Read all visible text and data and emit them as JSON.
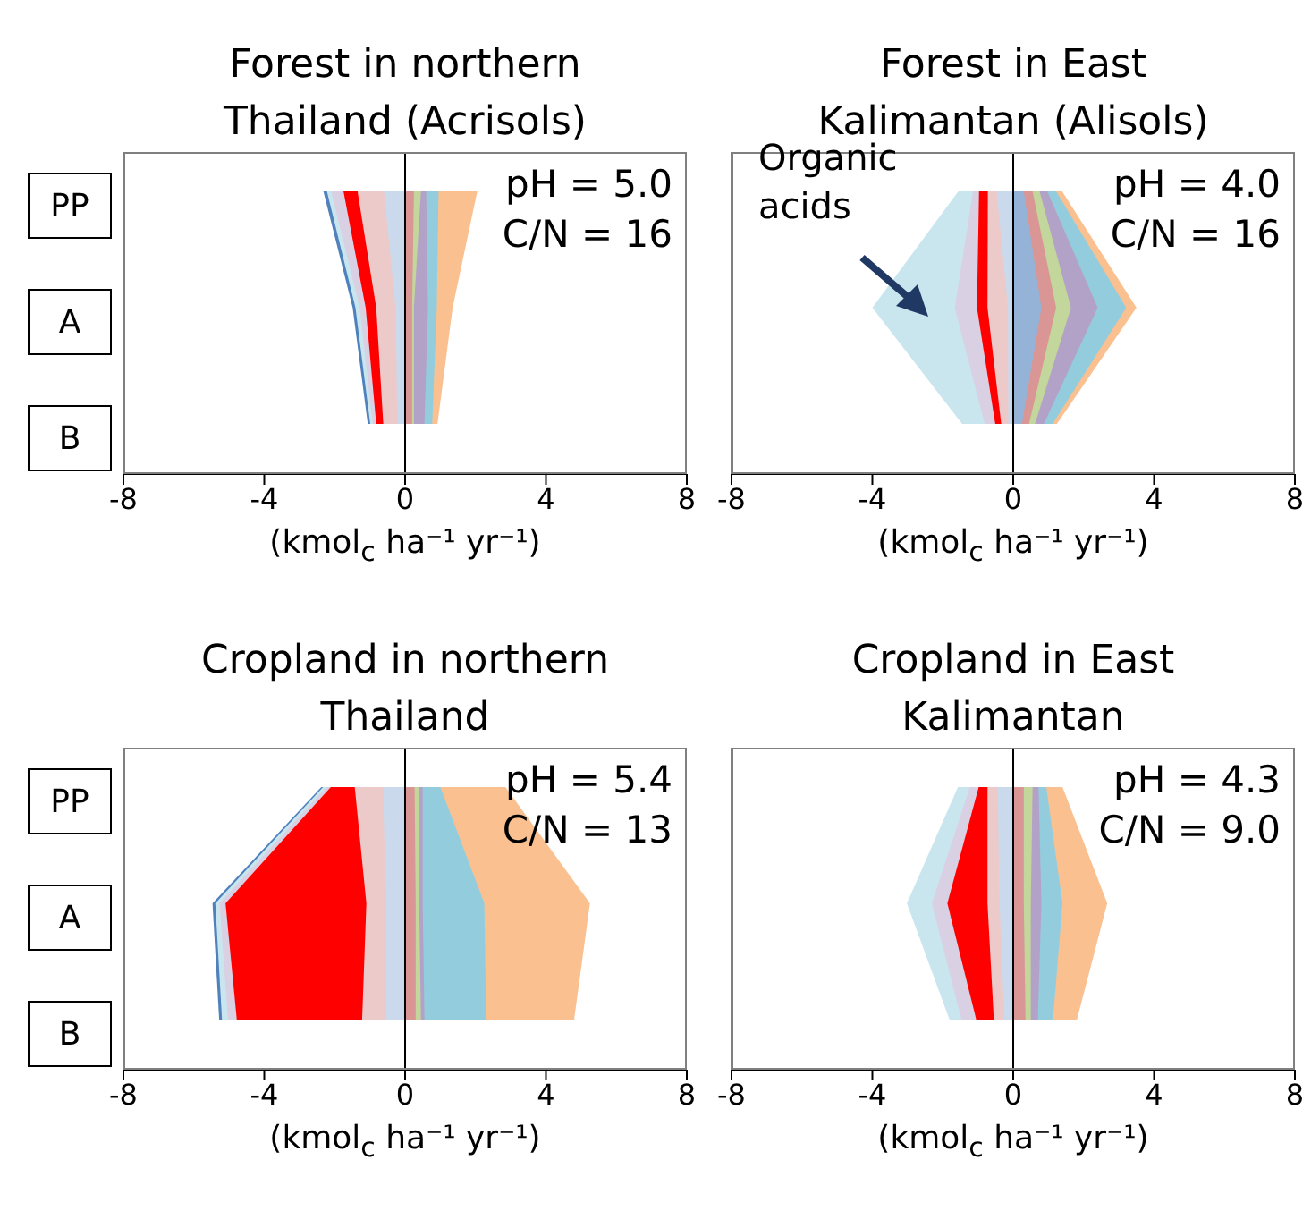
{
  "chart_data": [
    {
      "type": "area",
      "orientation": "horizontal",
      "title": "Forest in northern Thailand (Acrisols)",
      "xlabel": "(kmol$_{c}$ ha⁻¹ yr⁻¹)",
      "categories": [
        "PP",
        "A",
        "B"
      ],
      "xlim": [
        -8,
        8
      ],
      "xticks": [
        -8,
        -4,
        0,
        4,
        8
      ],
      "ref_lines": [
        {
          "axis": "x",
          "value": 0,
          "color": "#000000"
        }
      ],
      "annotations": [
        "pH = 5.0",
        "C/N = 16"
      ],
      "series": [
        {
          "color": "#4f81bd",
          "values": [
            -2.32,
            -1.49,
            -1.06
          ]
        },
        {
          "color": "#c9e6ee",
          "values": [
            -2.22,
            -1.41,
            -0.99
          ]
        },
        {
          "color": "#d9d0e3",
          "values": [
            -2.1,
            -1.29,
            -0.92
          ]
        },
        {
          "color": "#ff0000",
          "values": [
            -1.75,
            -1.12,
            -0.82
          ]
        },
        {
          "color": "#eccac9",
          "values": [
            -1.35,
            -0.82,
            -0.62
          ]
        },
        {
          "color": "#cad9eb",
          "values": [
            -0.6,
            -0.27,
            -0.22
          ]
        },
        {
          "color": "#fac090",
          "values": [
            2.05,
            1.35,
            0.92
          ]
        },
        {
          "color": "#93cddd",
          "values": [
            0.95,
            0.9,
            0.77
          ]
        },
        {
          "color": "#b3a2c7",
          "values": [
            0.6,
            0.65,
            0.55
          ]
        },
        {
          "color": "#c3d69b",
          "values": [
            0.45,
            0.25,
            0.25
          ]
        },
        {
          "color": "#d99694",
          "values": [
            0.25,
            0.2,
            0.2
          ]
        }
      ]
    },
    {
      "type": "area",
      "orientation": "horizontal",
      "title": "Forest in East Kalimantan (Alisols)",
      "xlabel": "(kmol$_{c}$ ha⁻¹ yr⁻¹)",
      "categories": [
        null,
        null,
        null
      ],
      "xlim": [
        -8,
        8
      ],
      "xticks": [
        -8,
        -4,
        0,
        4,
        8
      ],
      "ref_lines": [
        {
          "axis": "x",
          "value": 0,
          "color": "#000000"
        }
      ],
      "annotations": [
        "pH = 4.0",
        "C/N = 16",
        "Organic acids"
      ],
      "series": [
        {
          "color": "#c9e6ee",
          "values": [
            -1.56,
            -4.0,
            -1.45
          ]
        },
        {
          "color": "#d9d0e3",
          "values": [
            -1.14,
            -1.66,
            -0.81
          ]
        },
        {
          "color": "#ff0000",
          "values": [
            -0.97,
            -1.03,
            -0.51
          ]
        },
        {
          "color": "#eccac9",
          "values": [
            -0.72,
            -0.73,
            -0.34
          ]
        },
        {
          "color": "#cad9eb",
          "values": [
            -0.47,
            -0.15,
            -0.14
          ]
        },
        {
          "color": "#fac090",
          "values": [
            1.39,
            3.5,
            1.24
          ]
        },
        {
          "color": "#93cddd",
          "values": [
            1.22,
            3.21,
            1.12
          ]
        },
        {
          "color": "#b3a2c7",
          "values": [
            0.97,
            2.4,
            0.87
          ]
        },
        {
          "color": "#c3d69b",
          "values": [
            0.75,
            1.64,
            0.62
          ]
        },
        {
          "color": "#d99694",
          "values": [
            0.55,
            1.22,
            0.45
          ]
        },
        {
          "color": "#95b3d7",
          "values": [
            0.3,
            0.8,
            0.25
          ]
        }
      ]
    },
    {
      "type": "area",
      "orientation": "horizontal",
      "title": "Cropland in northern Thailand",
      "xlabel": "(kmol$_{c}$ ha⁻¹ yr⁻¹)",
      "categories": [
        "PP",
        "A",
        "B"
      ],
      "xlim": [
        -8,
        8
      ],
      "xticks": [
        -8,
        -4,
        0,
        4,
        8
      ],
      "ref_lines": [
        {
          "axis": "x",
          "value": 0,
          "color": "#000000"
        }
      ],
      "annotations": [
        "pH = 5.4",
        "C/N = 13"
      ],
      "series": [
        {
          "color": "#4f81bd",
          "values": [
            -2.38,
            -5.47,
            -5.28
          ]
        },
        {
          "color": "#c9e6ee",
          "values": [
            -2.33,
            -5.39,
            -5.2
          ]
        },
        {
          "color": "#d9d0e3",
          "values": [
            -2.23,
            -5.27,
            -5.03
          ]
        },
        {
          "color": "#ff0000",
          "values": [
            -2.11,
            -5.1,
            -4.78
          ]
        },
        {
          "color": "#eccac9",
          "values": [
            -1.43,
            -1.1,
            -1.22
          ]
        },
        {
          "color": "#cad9eb",
          "values": [
            -0.63,
            -0.54,
            -0.54
          ]
        },
        {
          "color": "#fac090",
          "values": [
            2.85,
            5.25,
            4.8
          ]
        },
        {
          "color": "#93cddd",
          "values": [
            1.0,
            2.25,
            2.3
          ]
        },
        {
          "color": "#b3a2c7",
          "values": [
            0.5,
            0.5,
            0.55
          ]
        },
        {
          "color": "#c3d69b",
          "values": [
            0.4,
            0.4,
            0.45
          ]
        },
        {
          "color": "#d99694",
          "values": [
            0.27,
            0.3,
            0.3
          ]
        }
      ]
    },
    {
      "type": "area",
      "orientation": "horizontal",
      "title": "Cropland in East Kalimantan",
      "xlabel": "(kmol$_{c}$ ha⁻¹ yr⁻¹)",
      "categories": [
        null,
        null,
        null
      ],
      "xlim": [
        -8,
        8
      ],
      "xticks": [
        -8,
        -4,
        0,
        4,
        8
      ],
      "ref_lines": [
        {
          "axis": "x",
          "value": 0,
          "color": "#000000"
        }
      ],
      "annotations": [
        "pH = 4.3",
        "C/N = 9.0"
      ],
      "series": [
        {
          "color": "#c9e6ee",
          "values": [
            -1.57,
            -3.02,
            -1.81
          ]
        },
        {
          "color": "#d9d0e3",
          "values": [
            -1.23,
            -2.31,
            -1.47
          ]
        },
        {
          "color": "#ff0000",
          "values": [
            -0.98,
            -1.87,
            -1.05
          ]
        },
        {
          "color": "#eccac9",
          "values": [
            -0.73,
            -0.73,
            -0.55
          ]
        },
        {
          "color": "#cad9eb",
          "values": [
            -0.44,
            -0.39,
            -0.25
          ]
        },
        {
          "color": "#fac090",
          "values": [
            1.4,
            2.67,
            1.81
          ]
        },
        {
          "color": "#93cddd",
          "values": [
            0.94,
            1.4,
            1.13
          ]
        },
        {
          "color": "#b3a2c7",
          "values": [
            0.72,
            0.8,
            0.7
          ]
        },
        {
          "color": "#c3d69b",
          "values": [
            0.55,
            0.5,
            0.5
          ]
        },
        {
          "color": "#d99694",
          "values": [
            0.3,
            0.3,
            0.35
          ]
        }
      ]
    }
  ]
}
